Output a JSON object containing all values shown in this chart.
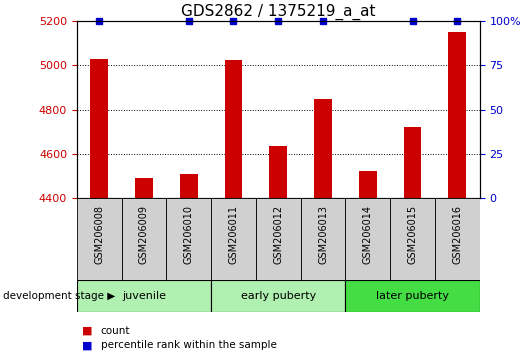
{
  "title": "GDS2862 / 1375219_a_at",
  "samples": [
    "GSM206008",
    "GSM206009",
    "GSM206010",
    "GSM206011",
    "GSM206012",
    "GSM206013",
    "GSM206014",
    "GSM206015",
    "GSM206016"
  ],
  "count_values": [
    5030,
    4490,
    4510,
    5025,
    4635,
    4850,
    4525,
    4720,
    5150
  ],
  "percentile_visible": [
    true,
    false,
    true,
    true,
    true,
    true,
    false,
    true,
    true
  ],
  "ymin": 4400,
  "ymax": 5200,
  "y_left_ticks": [
    4400,
    4600,
    4800,
    5000,
    5200
  ],
  "y_right_ticks": [
    0,
    25,
    50,
    75,
    100
  ],
  "y_right_tick_labels": [
    "0",
    "25",
    "50",
    "75",
    "100%"
  ],
  "groups": [
    {
      "label": "juvenile",
      "start": 0,
      "end": 3
    },
    {
      "label": "early puberty",
      "start": 3,
      "end": 6
    },
    {
      "label": "later puberty",
      "start": 6,
      "end": 9
    }
  ],
  "group_colors": [
    "#b0f0b0",
    "#b0f0b0",
    "#44dd44"
  ],
  "bar_color": "#cc0000",
  "percentile_color": "#0000cc",
  "bar_width": 0.4,
  "tick_label_color_left": "#cc0000",
  "tick_label_color_right": "#0000cc",
  "development_stage_label": "development stage",
  "legend_count_label": "count",
  "legend_pct_label": "percentile rank within the sample",
  "title_fontsize": 11,
  "grid_ticks": [
    4600,
    4800,
    5000
  ]
}
